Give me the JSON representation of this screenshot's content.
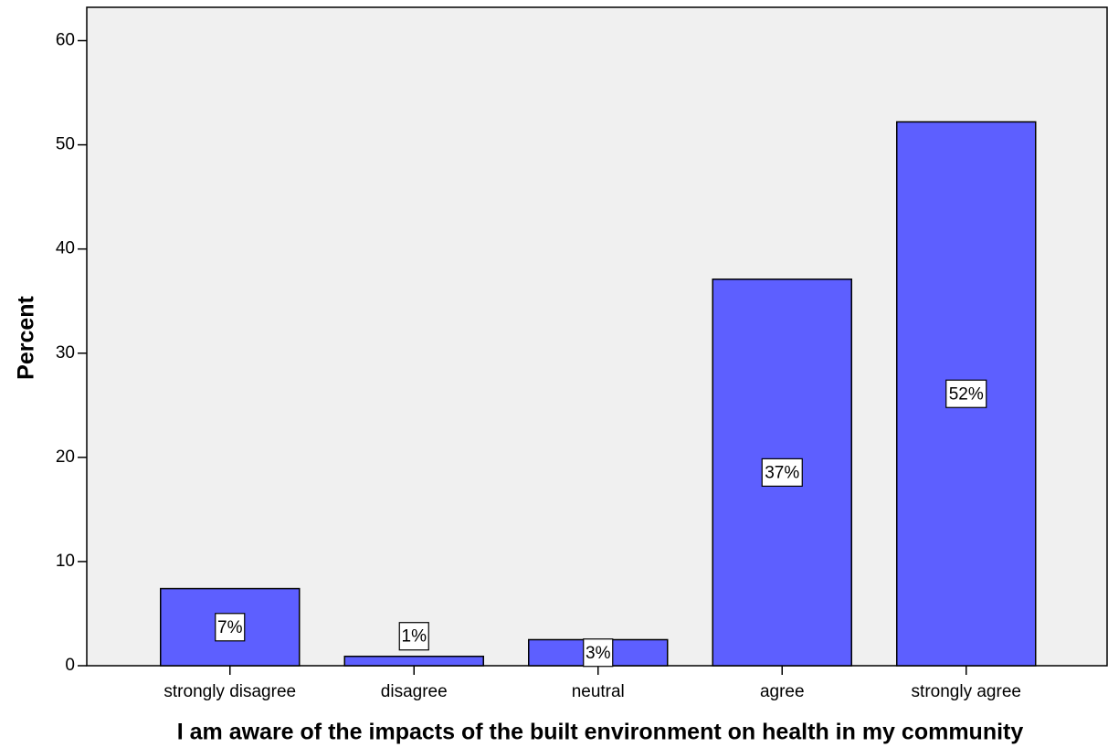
{
  "chart_data": {
    "type": "bar",
    "x_label": "I am aware of the impacts of the built environment on health in my community",
    "y_label": "Percent",
    "categories": [
      "strongly disagree",
      "disagree",
      "neutral",
      "agree",
      "strongly agree"
    ],
    "values": [
      7.4,
      0.9,
      2.5,
      37.1,
      52.2
    ],
    "value_labels": [
      "7%",
      "1%",
      "3%",
      "37%",
      "52%"
    ],
    "color": "#5d5fff",
    "ylim": [
      0,
      63.2
    ],
    "yticks": [
      0,
      10,
      20,
      30,
      40,
      50,
      60
    ],
    "grid": false
  }
}
